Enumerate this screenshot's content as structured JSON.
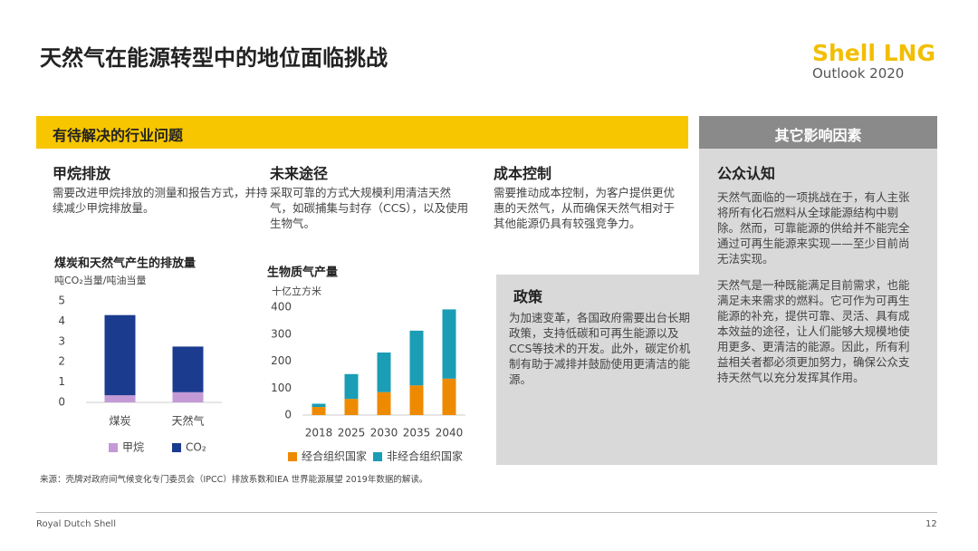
{
  "header": {
    "title": "天然气在能源转型中的地位面临挑战",
    "logo": "Shell LNG",
    "logo_subtitle": "Outlook 2020"
  },
  "left_banner": "有待解决的行业问题",
  "right_banner": "其它影响因素",
  "sections": [
    {
      "title": "甲烷排放",
      "text": "需要改进甲烷排放的测量和报告方式，并持续减少甲烷排放量。"
    },
    {
      "title": "未来途径",
      "text": "采取可靠的方式大规模利用清洁天然气，如碳捕集与封存（CCS），以及使用生物气。"
    },
    {
      "title": "成本控制",
      "text": "需要推动成本控制，为客户提供更优惠的天然气，从而确保天然气相对于其他能源仍具有较强竞争力。"
    }
  ],
  "policy": {
    "title": "政策",
    "text": "为加速变革，各国政府需要出台长期政策，支持低碳和可再生能源以及CCS等技术的开发。此外，碳定价机制有助于减排并鼓励使用更清洁的能源。"
  },
  "public": {
    "title": "公众认知",
    "paragraphs": [
      "天然气面临的一项挑战在于，有人主张将所有化石燃料从全球能源结构中剔除。然而，可靠能源的供给并不能完全通过可再生能源来实现——至少目前尚无法实现。",
      "天然气是一种既能满足目前需求，也能满足未来需求的燃料。它可作为可再生能源的补充，提供可靠、灵活、具有成本效益的途径，让人们能够大规模地使用更多、更清洁的能源。因此，所有利益相关者都必须更加努力，确保公众支持天然气以充分发挥其作用。"
    ]
  },
  "source": "来源：壳牌对政府间气候变化专门委员会（IPCC）排放系数和IEA 世界能源展望 2019年数据的解读。",
  "footer": {
    "company": "Royal Dutch Shell",
    "page": "12"
  },
  "chart_data": [
    {
      "type": "stacked-bar",
      "title": "煤炭和天然气产生的排放量",
      "y_label": "吨CO₂当量/吨油当量",
      "categories": [
        "煤炭",
        "天然气"
      ],
      "series": [
        {
          "name": "甲烷",
          "color": "#c39ad6",
          "values": [
            0.35,
            0.5
          ]
        },
        {
          "name": "CO₂",
          "color": "#1b3b8f",
          "values": [
            3.95,
            2.25
          ]
        }
      ],
      "ylim": [
        0,
        5
      ],
      "yticks": [
        0,
        1,
        2,
        3,
        4,
        5
      ]
    },
    {
      "type": "stacked-bar",
      "title": "生物质气产量",
      "y_label": "十亿立方米",
      "categories": [
        "2018",
        "2025",
        "2030",
        "2035",
        "2040"
      ],
      "series": [
        {
          "name": "经合组织国家",
          "color": "#ee8a00",
          "values": [
            30,
            60,
            85,
            110,
            135
          ]
        },
        {
          "name": "非经合组织国家",
          "color": "#1a9db5",
          "values": [
            12,
            92,
            147,
            203,
            257
          ]
        }
      ],
      "ylim": [
        0,
        400
      ],
      "yticks": [
        0,
        100,
        200,
        300,
        400
      ]
    }
  ]
}
